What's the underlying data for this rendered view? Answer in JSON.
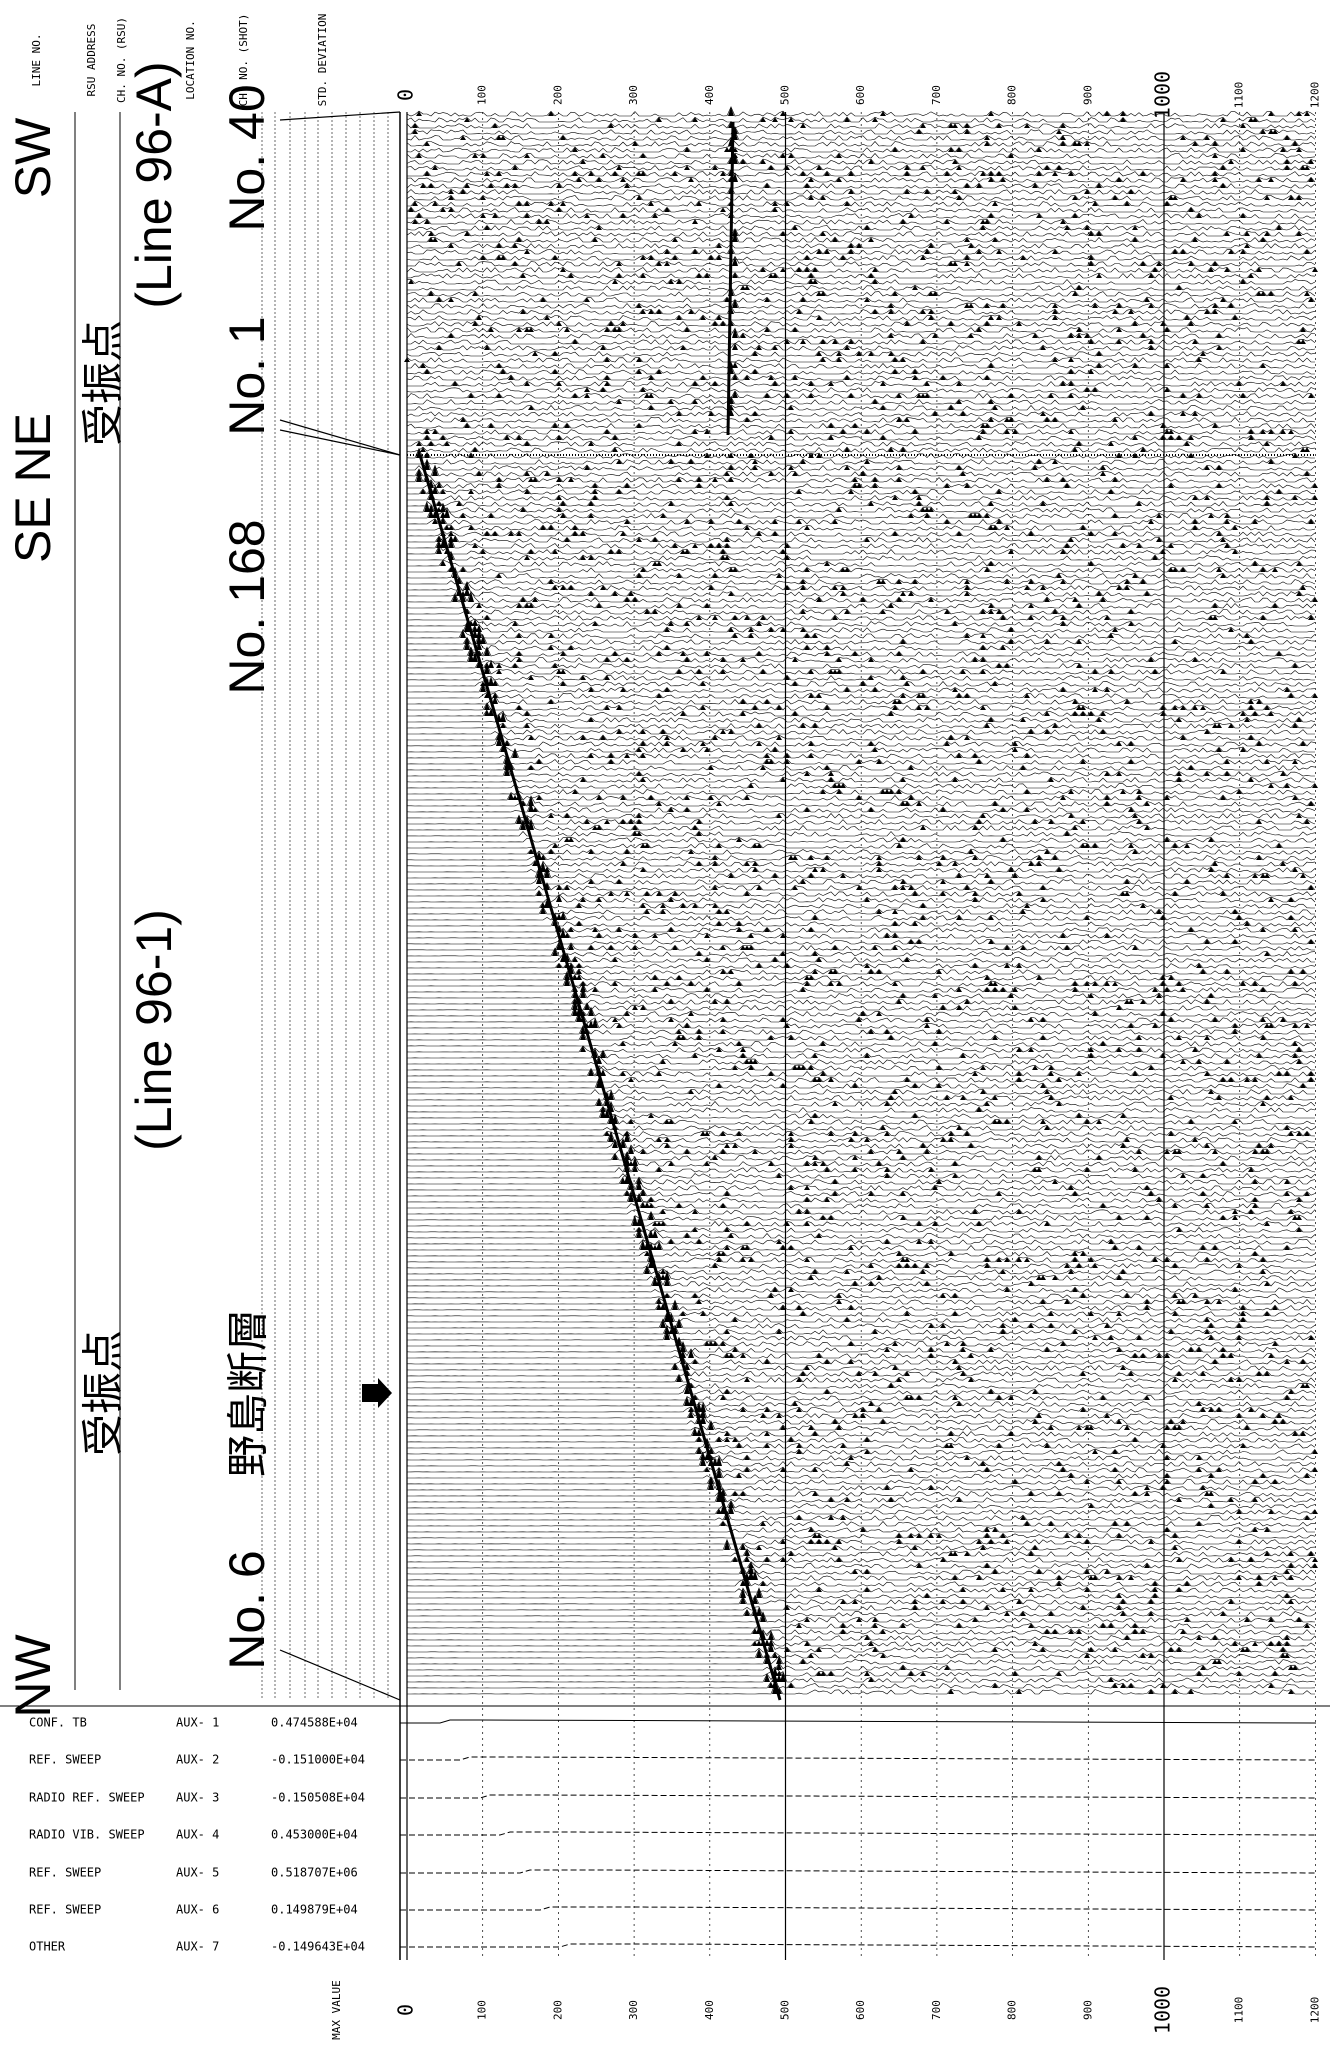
{
  "header_labels": [
    "LINE NO.",
    "RSU ADDRESS",
    "CH. NO. (RSU)",
    "LOCATION NO.",
    "CH. NO. (SHOT)",
    "STD. DEVIATION"
  ],
  "line_direction": {
    "nw": "NW",
    "se_ne": "SE NE",
    "sw": "SW"
  },
  "receivers": {
    "left": "受振点",
    "right": "受振点"
  },
  "lines": {
    "left": "(Line 96-1)",
    "right": "(Line 96-A)"
  },
  "locations": {
    "no6": "No. 6",
    "fault": "野島断層",
    "no168": "No. 168",
    "no1": "No. 1",
    "no40": "No. 40"
  },
  "time_ticks": [
    "0",
    "100",
    "200",
    "300",
    "400",
    "500",
    "600",
    "700",
    "800",
    "900",
    "1000",
    "1100",
    "1200"
  ],
  "aux_channels": [
    {
      "name": "CONF. TB",
      "channel": "AUX- 1",
      "max_value": "0.474588E+04"
    },
    {
      "name": "REF. SWEEP",
      "channel": "AUX- 2",
      "max_value": "-0.151000E+04"
    },
    {
      "name": "RADIO REF. SWEEP",
      "channel": "AUX- 3",
      "max_value": "-0.150508E+04"
    },
    {
      "name": "RADIO VIB. SWEEP",
      "channel": "AUX- 4",
      "max_value": "0.453000E+04"
    },
    {
      "name": "REF. SWEEP",
      "channel": "AUX- 5",
      "max_value": "0.518707E+06"
    },
    {
      "name": "REF. SWEEP",
      "channel": "AUX- 6",
      "max_value": "0.149879E+04"
    },
    {
      "name": "OTHER",
      "channel": "AUX- 7",
      "max_value": "-0.149643E+04"
    }
  ],
  "max_value_label": "MAX VALUE"
}
